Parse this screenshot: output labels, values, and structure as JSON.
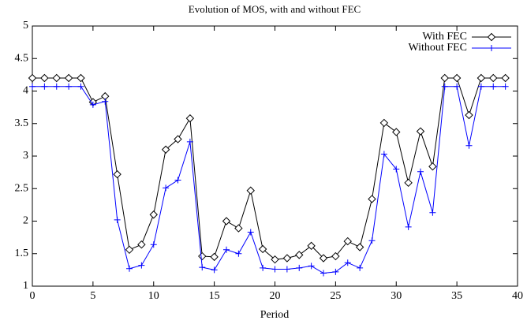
{
  "chart_data": {
    "type": "line",
    "title": "Evolution of MOS, with and without FEC",
    "x_label": "Period",
    "x": [
      0,
      1,
      2,
      3,
      4,
      5,
      6,
      7,
      8,
      9,
      10,
      11,
      12,
      13,
      14,
      15,
      16,
      17,
      18,
      19,
      20,
      21,
      22,
      23,
      24,
      25,
      26,
      27,
      28,
      29,
      30,
      31,
      32,
      33,
      34,
      35,
      36,
      37,
      38,
      39
    ],
    "series": [
      {
        "name": "With FEC",
        "color": "#000000",
        "marker": "diamond",
        "values": [
          4.2,
          4.2,
          4.2,
          4.2,
          4.2,
          3.83,
          3.92,
          2.72,
          1.56,
          1.64,
          2.1,
          3.1,
          3.26,
          3.58,
          1.46,
          1.45,
          2.0,
          1.89,
          2.47,
          1.57,
          1.41,
          1.43,
          1.48,
          1.62,
          1.43,
          1.46,
          1.69,
          1.6,
          2.34,
          3.51,
          3.37,
          2.59,
          3.38,
          2.84,
          4.2,
          4.2,
          3.63,
          4.2,
          4.2,
          4.2
        ]
      },
      {
        "name": "Without FEC",
        "color": "#0000ff",
        "marker": "plus",
        "values": [
          4.07,
          4.07,
          4.07,
          4.07,
          4.07,
          3.79,
          3.84,
          2.02,
          1.27,
          1.32,
          1.64,
          2.51,
          2.63,
          3.22,
          1.29,
          1.25,
          1.56,
          1.5,
          1.83,
          1.28,
          1.26,
          1.26,
          1.28,
          1.31,
          1.2,
          1.22,
          1.36,
          1.28,
          1.7,
          3.03,
          2.8,
          1.91,
          2.76,
          2.13,
          4.07,
          4.07,
          3.16,
          4.07,
          4.07,
          4.07
        ]
      }
    ],
    "xlim": [
      0,
      40
    ],
    "xticks": [
      0,
      5,
      10,
      15,
      20,
      25,
      30,
      35,
      40
    ],
    "ylim": [
      1,
      5
    ],
    "yticks": [
      1,
      1.5,
      2,
      2.5,
      3,
      3.5,
      4,
      4.5,
      5
    ],
    "grid": false,
    "legend": "top-right"
  }
}
